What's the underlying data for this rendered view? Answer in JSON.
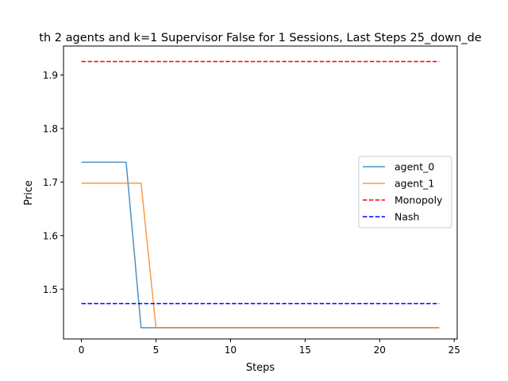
{
  "chart_data": {
    "type": "line",
    "title": "th 2 agents and k=1 Supervisor False for 1 Sessions, Last Steps 25_down_de",
    "xlabel": "Steps",
    "ylabel": "Price",
    "xlim": [
      -1.2,
      25.2
    ],
    "ylim": [
      1.407,
      1.954
    ],
    "xticks": [
      0,
      5,
      10,
      15,
      20,
      25
    ],
    "xtick_labels": [
      "0",
      "5",
      "10",
      "15",
      "20",
      "25"
    ],
    "yticks": [
      1.5,
      1.6,
      1.7,
      1.8,
      1.9
    ],
    "ytick_labels": [
      "1.5",
      "1.6",
      "1.7",
      "1.8",
      "1.9"
    ],
    "grid": false,
    "legend_position": "center-right",
    "series": [
      {
        "name": "agent_0",
        "color": "#1f77b4",
        "style": "solid",
        "x": [
          0,
          1,
          2,
          3,
          4,
          5,
          6,
          7,
          8,
          9,
          10,
          11,
          12,
          13,
          14,
          15,
          16,
          17,
          18,
          19,
          20,
          21,
          22,
          23,
          24
        ],
        "values": [
          1.737,
          1.737,
          1.737,
          1.737,
          1.428,
          1.428,
          1.428,
          1.428,
          1.428,
          1.428,
          1.428,
          1.428,
          1.428,
          1.428,
          1.428,
          1.428,
          1.428,
          1.428,
          1.428,
          1.428,
          1.428,
          1.428,
          1.428,
          1.428,
          1.428
        ]
      },
      {
        "name": "agent_1",
        "color": "#ff7f0e",
        "style": "solid",
        "x": [
          0,
          1,
          2,
          3,
          4,
          5,
          6,
          7,
          8,
          9,
          10,
          11,
          12,
          13,
          14,
          15,
          16,
          17,
          18,
          19,
          20,
          21,
          22,
          23,
          24
        ],
        "values": [
          1.698,
          1.698,
          1.698,
          1.698,
          1.698,
          1.428,
          1.428,
          1.428,
          1.428,
          1.428,
          1.428,
          1.428,
          1.428,
          1.428,
          1.428,
          1.428,
          1.428,
          1.428,
          1.428,
          1.428,
          1.428,
          1.428,
          1.428,
          1.428,
          1.428
        ]
      },
      {
        "name": "Monopoly",
        "color": "#ff0000",
        "style": "dashed",
        "x": [
          0,
          24
        ],
        "values": [
          1.925,
          1.925
        ]
      },
      {
        "name": "Nash",
        "color": "#0000ff",
        "style": "dashed",
        "x": [
          0,
          24
        ],
        "values": [
          1.473,
          1.473
        ]
      }
    ]
  }
}
